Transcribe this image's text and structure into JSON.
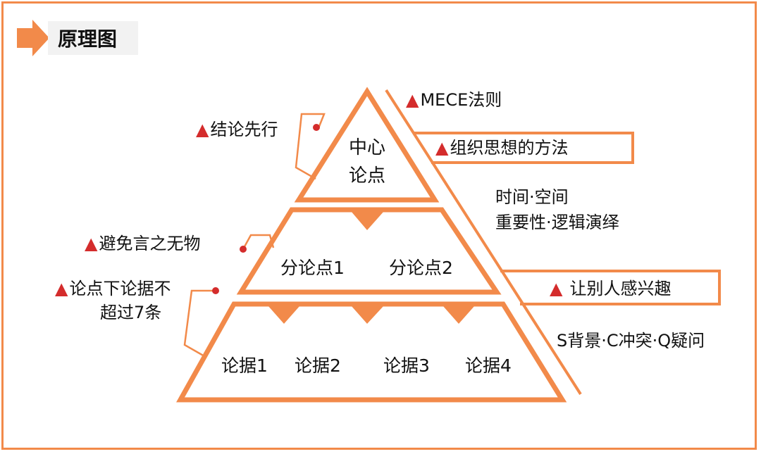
{
  "header": {
    "title": "原理图"
  },
  "pyramid": {
    "apex_line1": "中心",
    "apex_line2": "论点",
    "middle": [
      "分论点1",
      "分论点2"
    ],
    "bottom": [
      "论据1",
      "论据2",
      "论据3",
      "论据4"
    ]
  },
  "left_labels": {
    "conclusion_first": "结论先行",
    "avoid_empty": "避免言之无物",
    "evidence_limit_line1": "论点下论据不",
    "evidence_limit_line2": "超过7条"
  },
  "right_labels": {
    "mece": "MECE法则",
    "organize": "组织思想的方法",
    "order_line1": "时间·空间",
    "order_line2": "重要性·逻辑演绎",
    "interest": "让别人感兴趣",
    "scq": "S背景·C冲突·Q疑问"
  },
  "colors": {
    "accent": "#f28a4a",
    "marker": "#d42c2c",
    "header_bg": "#f2f2f2"
  }
}
